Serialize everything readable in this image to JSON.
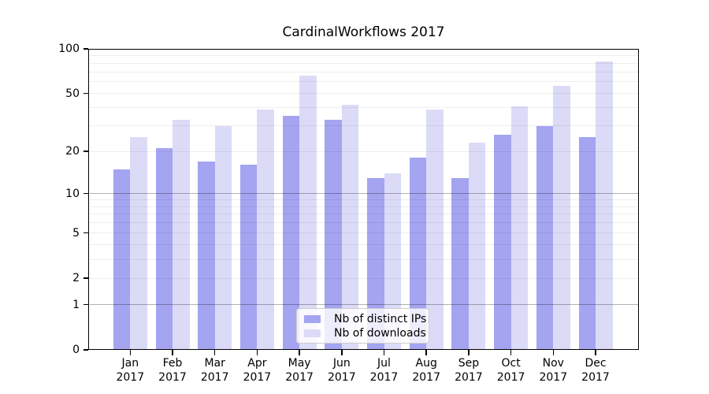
{
  "chart_data": {
    "type": "bar",
    "title": "CardinalWorkflows 2017",
    "xlabel": "",
    "ylabel": "",
    "categories": [
      "Jan",
      "Feb",
      "Mar",
      "Apr",
      "May",
      "Jun",
      "Jul",
      "Aug",
      "Sep",
      "Oct",
      "Nov",
      "Dec"
    ],
    "year_label": "2017",
    "series": [
      {
        "name": "Nb of distinct IPs",
        "color": "#a4a4f1",
        "values": [
          15,
          21,
          17,
          16,
          35,
          33,
          13,
          18,
          13,
          26,
          30,
          25
        ]
      },
      {
        "name": "Nb of downloads",
        "color": "#dbdbf8",
        "values": [
          25,
          33,
          30,
          39,
          66,
          42,
          14,
          39,
          23,
          41,
          56,
          82
        ]
      }
    ],
    "y_axis": {
      "scale": "log1p",
      "ylim": [
        0,
        100
      ],
      "ticks": [
        0,
        1,
        2,
        5,
        10,
        20,
        50,
        100
      ],
      "minor_gridlines": [
        2,
        3,
        4,
        5,
        6,
        7,
        8,
        9,
        20,
        30,
        40,
        50,
        60,
        70,
        80,
        90
      ],
      "major_gridlines": [
        1,
        10,
        100
      ],
      "grid": "on"
    },
    "legend": {
      "position": "lower center",
      "entries": [
        "Nb of distinct IPs",
        "Nb of downloads"
      ]
    }
  }
}
